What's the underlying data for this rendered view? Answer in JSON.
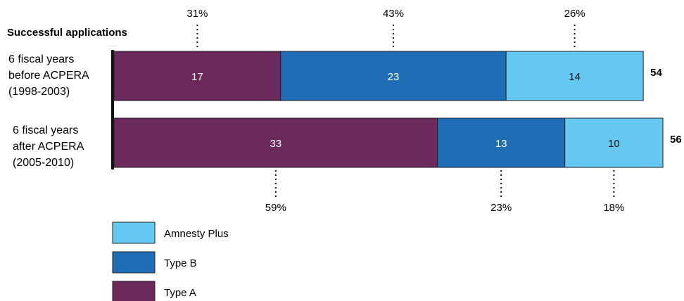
{
  "chart_data": {
    "type": "bar",
    "orientation": "horizontal",
    "stacked": true,
    "title": "Successful applications",
    "categories": [
      [
        "6 fiscal years",
        "before ACPERA",
        "(1998-2003)"
      ],
      [
        "6 fiscal years",
        "after ACPERA",
        "(2005-2010)"
      ]
    ],
    "series": [
      {
        "name": "Type A",
        "color": "#6b2a5b",
        "values": [
          17,
          33
        ],
        "percent_labels": [
          "31%",
          "59%"
        ]
      },
      {
        "name": "Type B",
        "color": "#1f6db5",
        "values": [
          23,
          13
        ],
        "percent_labels": [
          "43%",
          "23%"
        ]
      },
      {
        "name": "Amnesty Plus",
        "color": "#64c8f0",
        "values": [
          14,
          10
        ],
        "percent_labels": [
          "26%",
          "18%"
        ]
      }
    ],
    "totals": [
      54,
      56
    ],
    "legend": {
      "placement": "bottom-left",
      "order": [
        "Amnesty Plus",
        "Type B",
        "Type A"
      ]
    },
    "grid": false,
    "xlim": [
      0,
      56
    ]
  }
}
